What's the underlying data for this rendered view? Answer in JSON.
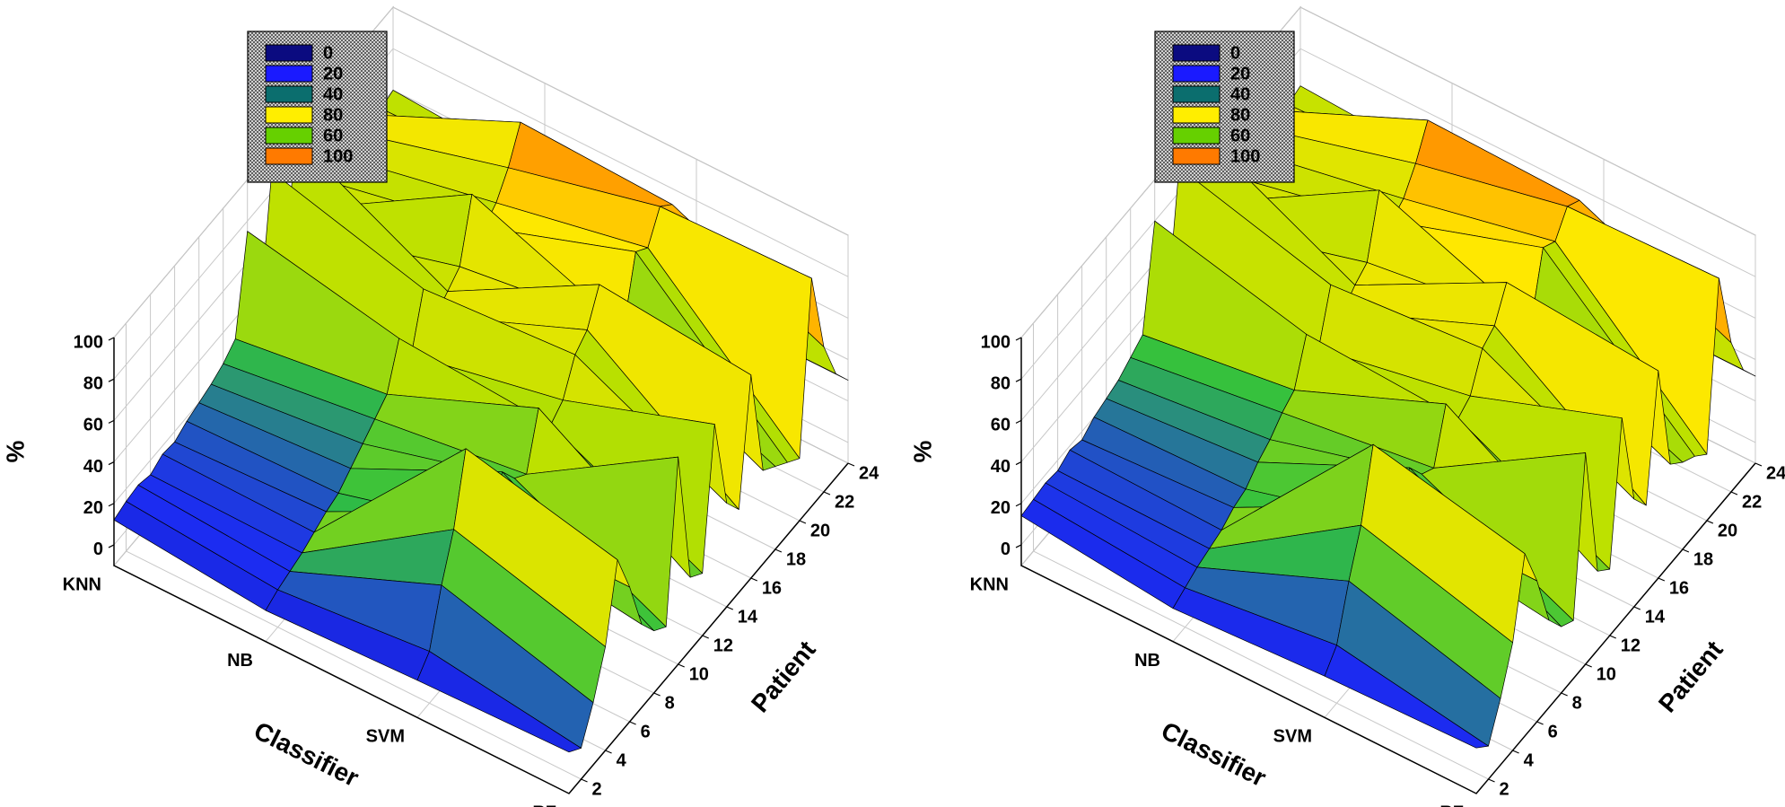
{
  "chart_data": [
    {
      "type": "surface3d",
      "categories": [
        "KNN",
        "NB",
        "SVM",
        "RF"
      ],
      "x": [
        1,
        2,
        3,
        4,
        5,
        6,
        7,
        8,
        9,
        10,
        11,
        12,
        13,
        14,
        15,
        16,
        17,
        18,
        19,
        20,
        21,
        22,
        23,
        24
      ],
      "values": [
        [
          12,
          14,
          15,
          13,
          16,
          15,
          18,
          20,
          22,
          25,
          30,
          75,
          28,
          90,
          35,
          92,
          40,
          45,
          50,
          55,
          60,
          62,
          58,
          60
        ],
        [
          5,
          8,
          10,
          12,
          15,
          18,
          20,
          25,
          30,
          35,
          40,
          60,
          45,
          70,
          50,
          55,
          60,
          88,
          65,
          70,
          80,
          95,
          60,
          55
        ],
        [
          8,
          15,
          40,
          60,
          92,
          55,
          40,
          60,
          50,
          45,
          70,
          55,
          60,
          75,
          80,
          95,
          70,
          60,
          90,
          85,
          98,
          92,
          40,
          30
        ],
        [
          10,
          5,
          20,
          40,
          75,
          55,
          30,
          20,
          15,
          90,
          25,
          20,
          85,
          40,
          30,
          88,
          35,
          30,
          25,
          20,
          100,
          60,
          40,
          30
        ]
      ],
      "category_label": "Classifier",
      "x_label": "Patient",
      "z_label": "%",
      "xlim": [
        1,
        24
      ],
      "xticks": [
        2,
        4,
        6,
        8,
        10,
        12,
        14,
        16,
        18,
        20,
        22,
        24
      ],
      "zlim": [
        -10,
        100
      ],
      "zticks": [
        0,
        20,
        40,
        60,
        80,
        100
      ],
      "grid": true,
      "surface_colors": [
        "#0b0b86",
        "#1c2cf2",
        "#30c040",
        "#b8e000",
        "#ffe800",
        "#ff7000"
      ],
      "legend": {
        "levels": [
          0,
          20,
          40,
          80,
          60,
          100
        ],
        "colors": [
          "#0b0b80",
          "#1a1aff",
          "#0b6e6e",
          "#ffee00",
          "#66d000",
          "#ff7a00"
        ]
      }
    },
    {
      "type": "surface3d",
      "categories": [
        "KNN",
        "NB",
        "SVM",
        "RF"
      ],
      "x": [
        1,
        2,
        3,
        4,
        5,
        6,
        7,
        8,
        9,
        10,
        11,
        12,
        13,
        14,
        15,
        16,
        17,
        18,
        19,
        20,
        21,
        22,
        23,
        24
      ],
      "values": [
        [
          14,
          15,
          16,
          15,
          18,
          16,
          20,
          22,
          24,
          28,
          32,
          80,
          30,
          92,
          38,
          94,
          42,
          48,
          52,
          58,
          62,
          64,
          60,
          62
        ],
        [
          6,
          9,
          12,
          14,
          16,
          20,
          22,
          28,
          32,
          38,
          42,
          62,
          48,
          72,
          52,
          58,
          62,
          90,
          68,
          72,
          82,
          96,
          62,
          58
        ],
        [
          10,
          18,
          42,
          62,
          94,
          58,
          42,
          62,
          52,
          48,
          72,
          58,
          62,
          78,
          82,
          96,
          72,
          62,
          92,
          88,
          98,
          94,
          42,
          32
        ],
        [
          12,
          6,
          22,
          42,
          78,
          58,
          32,
          22,
          18,
          92,
          28,
          22,
          88,
          42,
          32,
          90,
          38,
          32,
          28,
          22,
          100,
          62,
          42,
          32
        ]
      ],
      "category_label": "Classifier",
      "x_label": "Patient",
      "z_label": "%",
      "xlim": [
        1,
        24
      ],
      "xticks": [
        2,
        4,
        6,
        8,
        10,
        12,
        14,
        16,
        18,
        20,
        22,
        24
      ],
      "zlim": [
        -10,
        100
      ],
      "zticks": [
        0,
        20,
        40,
        60,
        80,
        100
      ],
      "grid": true,
      "surface_colors": [
        "#0b0b86",
        "#1c2cf2",
        "#30c040",
        "#b8e000",
        "#ffe800",
        "#ff7000"
      ],
      "legend": {
        "levels": [
          0,
          20,
          40,
          80,
          60,
          100
        ],
        "colors": [
          "#0b0b80",
          "#1a1aff",
          "#0b6e6e",
          "#ffee00",
          "#66d000",
          "#ff7a00"
        ]
      }
    }
  ]
}
